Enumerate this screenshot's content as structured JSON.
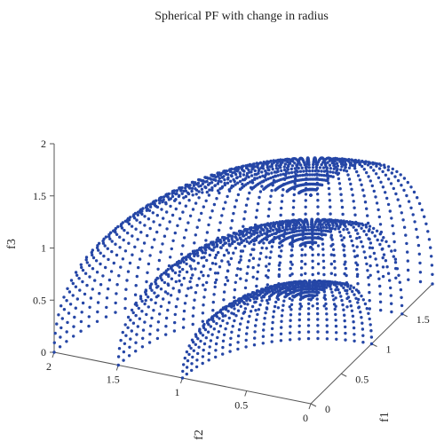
{
  "chart_data": {
    "type": "scatter",
    "subtype": "3d-scatter",
    "title": "Spherical PF with change in radius",
    "xlabel": "f1",
    "ylabel": "f2",
    "zlabel": "f3",
    "x_ticks": [
      "0",
      "0.5",
      "1",
      "1.5"
    ],
    "y_ticks": [
      "0",
      "0.5",
      "1",
      "1.5",
      "2"
    ],
    "z_ticks": [
      "0",
      "0.5",
      "1",
      "1.5",
      "2"
    ],
    "xlim": [
      0,
      2
    ],
    "ylim": [
      0,
      2
    ],
    "zlim": [
      0,
      2
    ],
    "grid": false,
    "marker_color": "#2546a6",
    "description_surfaces": "points on the positive octant of spheres f1^2+f2^2+f3^2=r^2",
    "series": [
      {
        "radius": 1.0
      },
      {
        "radius": 1.5
      },
      {
        "radius": 2.0
      }
    ]
  }
}
